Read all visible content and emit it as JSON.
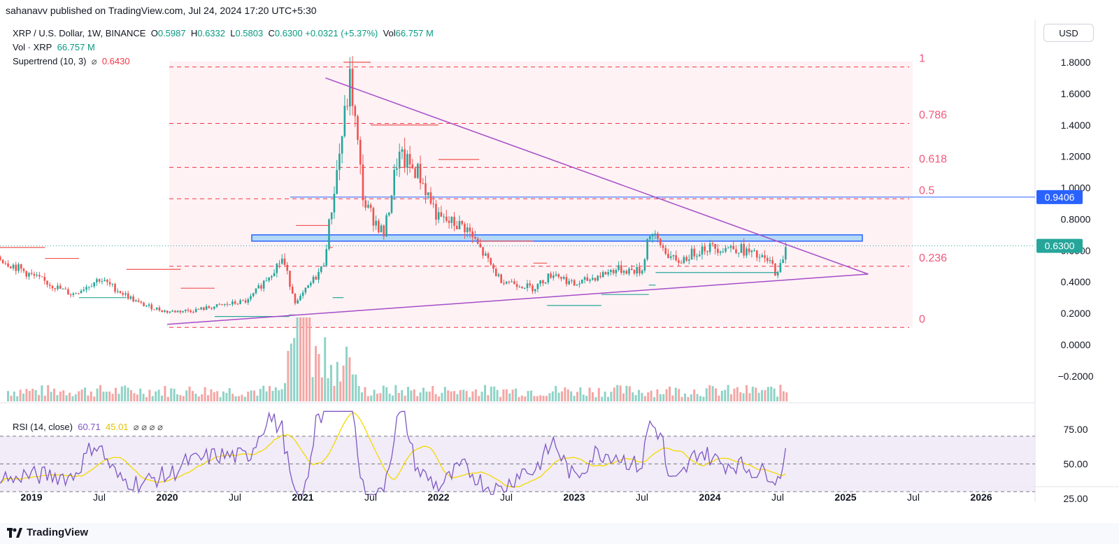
{
  "header": {
    "publish_line": "sahanavv published on TradingView.com, Jul 24, 2024 17:20 UTC+5:30"
  },
  "legend": {
    "symbol": "XRP / U.S. Dollar, 1W, BINANCE",
    "o_label": "O",
    "o_value": "0.5987",
    "h_label": "H",
    "h_value": "0.6332",
    "l_label": "L",
    "l_value": "0.5803",
    "c_label": "C",
    "c_value": "0.6300",
    "change": "+0.0321 (+5.37%)",
    "vol_label": "Vol",
    "vol_value": "66.757 M",
    "vol_line_label": "Vol · XRP",
    "vol_line_value": "66.757 M",
    "st_label": "Supertrend (10, 3)",
    "st_icon": "⌀",
    "st_value": "0.6430",
    "rsi_label": "RSI (14, close)",
    "rsi_value": "60.71",
    "rsi_ma_value": "45.01",
    "rsi_icons": "⌀ ⌀ ⌀ ⌀"
  },
  "usd_button": "USD",
  "footer": {
    "brand": "TradingView"
  },
  "colors": {
    "up": "#26a69a",
    "down": "#ef5350",
    "fib": "#f23645",
    "fib_text": "#f2577b",
    "triangle": "#a64dc7",
    "zone_fill": "#b3d9f7",
    "zone_stroke": "#2962ff",
    "price_label": "#26a69a",
    "level_label": "#2962ff",
    "rsi": "#7e57c2",
    "rsi_ma": "#f5d800"
  },
  "chart_data": {
    "type": "candlestick",
    "price_axis": {
      "ticks": [
        1.8,
        1.6,
        1.4,
        1.2,
        1.0,
        0.8,
        0.6,
        0.4,
        0.2,
        0.0,
        -0.2
      ],
      "labels": [
        "1.8000",
        "1.6000",
        "1.4000",
        "1.2000",
        "1.0000",
        "0.8000",
        "0.6000",
        "0.4000",
        "0.2000",
        "0.0000",
        "−0.2000"
      ]
    },
    "time_axis": {
      "labels": [
        "2019",
        "Jul",
        "2020",
        "Jul",
        "2021",
        "Jul",
        "2022",
        "Jul",
        "2023",
        "Jul",
        "2024",
        "Jul",
        "2025",
        "Jul",
        "2026"
      ],
      "bold": [
        true,
        false,
        true,
        false,
        true,
        false,
        true,
        false,
        true,
        false,
        true,
        false,
        true,
        false,
        true
      ]
    },
    "current_price": {
      "value": 0.63,
      "label": "0.6300"
    },
    "level_line": {
      "value": 0.9406,
      "label": "0.9406"
    },
    "fib_levels": [
      {
        "label": "1",
        "value": 1.77
      },
      {
        "label": "0.786",
        "value": 1.41
      },
      {
        "label": "0.618",
        "value": 1.13
      },
      {
        "label": "0.5",
        "value": 0.93
      },
      {
        "label": "0.236",
        "value": 0.5
      },
      {
        "label": "0",
        "value": 0.11
      }
    ],
    "resistance_zone": [
      0.66,
      0.7
    ],
    "triangle": {
      "upper": [
        [
          "2021-03",
          1.7
        ],
        [
          "2025-03",
          0.45
        ]
      ],
      "lower": [
        [
          "2020-01",
          0.13
        ],
        [
          "2025-03",
          0.45
        ]
      ]
    },
    "rsi_axis": {
      "ticks": [
        75,
        50,
        25
      ],
      "labels": [
        "75.00",
        "50.00",
        "25.00"
      ],
      "bands": [
        70,
        50,
        30
      ]
    },
    "series": [
      {
        "name": "XRP / U.S. Dollar",
        "shape": "candles"
      },
      {
        "name": "Vol · XRP",
        "shape": "bars"
      },
      {
        "name": "Supertrend (10, 3)",
        "shape": "step"
      },
      {
        "name": "RSI (14, close)",
        "shape": "line"
      }
    ]
  }
}
